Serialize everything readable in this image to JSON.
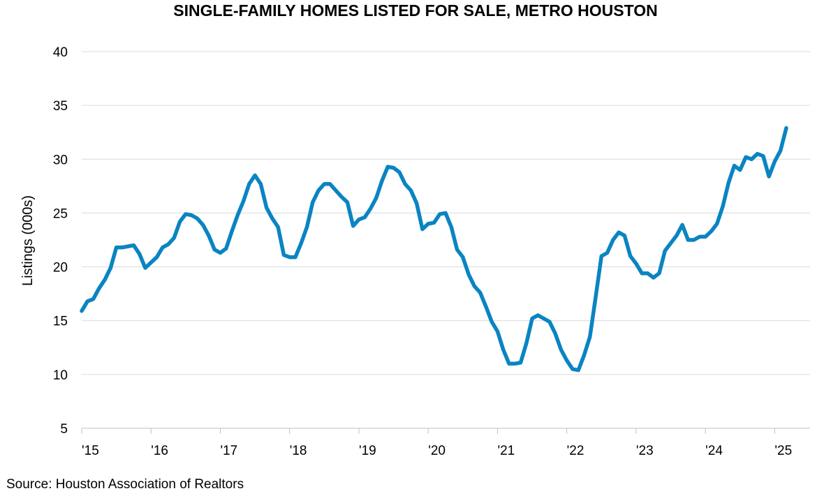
{
  "chart_data": {
    "type": "line",
    "title": "SINGLE-FAMILY HOMES LISTED FOR SALE, METRO HOUSTON",
    "xlabel": "",
    "ylabel": "Listings (000s)",
    "source": "Source: Houston Association of Realtors",
    "ylim": [
      5,
      40
    ],
    "yticks": [
      "5",
      "10",
      "15",
      "20",
      "25",
      "30",
      "35",
      "40"
    ],
    "xticks": [
      "'15",
      "'16",
      "'17",
      "'18",
      "'19",
      "'20",
      "'21",
      "'22",
      "'23",
      "'24",
      "'25"
    ],
    "grid": "horizontal",
    "line_color": "#0A84C2",
    "x_start": "2015-01",
    "frequency": "monthly",
    "series": [
      {
        "values": [
          15.9,
          16.8,
          17.0,
          18.0,
          18.8,
          19.9,
          21.8,
          21.8,
          21.9,
          22.0,
          21.2,
          19.9,
          20.4,
          20.9,
          21.8,
          22.1,
          22.7,
          24.2,
          24.9,
          24.8,
          24.5,
          23.9,
          22.9,
          21.6,
          21.3,
          21.7,
          23.3,
          24.8,
          26.1,
          27.7,
          28.5,
          27.7,
          25.5,
          24.5,
          23.7,
          21.1,
          20.9,
          20.9,
          22.2,
          23.7,
          26.0,
          27.1,
          27.7,
          27.7,
          27.1,
          26.5,
          26.0,
          23.8,
          24.4,
          24.6,
          25.4,
          26.4,
          28.0,
          29.3,
          29.2,
          28.8,
          27.7,
          27.1,
          25.9,
          23.5,
          24.0,
          24.1,
          24.9,
          25.0,
          23.7,
          21.6,
          20.9,
          19.3,
          18.2,
          17.6,
          16.3,
          14.9,
          14.0,
          12.3,
          11.0,
          11.0,
          11.1,
          12.9,
          15.2,
          15.5,
          15.2,
          14.9,
          13.8,
          12.3,
          11.3,
          10.5,
          10.4,
          11.8,
          13.5,
          17.2,
          21.0,
          21.3,
          22.5,
          23.2,
          22.9,
          21.0,
          20.3,
          19.4,
          19.4,
          19.0,
          19.4,
          21.5,
          22.2,
          22.9,
          23.9,
          22.5,
          22.5,
          22.8,
          22.8,
          23.3,
          24.0,
          25.6,
          27.8,
          29.4,
          29.0,
          30.2,
          30.0,
          30.5,
          30.3,
          28.4,
          29.8,
          30.8,
          32.9
        ]
      }
    ]
  }
}
